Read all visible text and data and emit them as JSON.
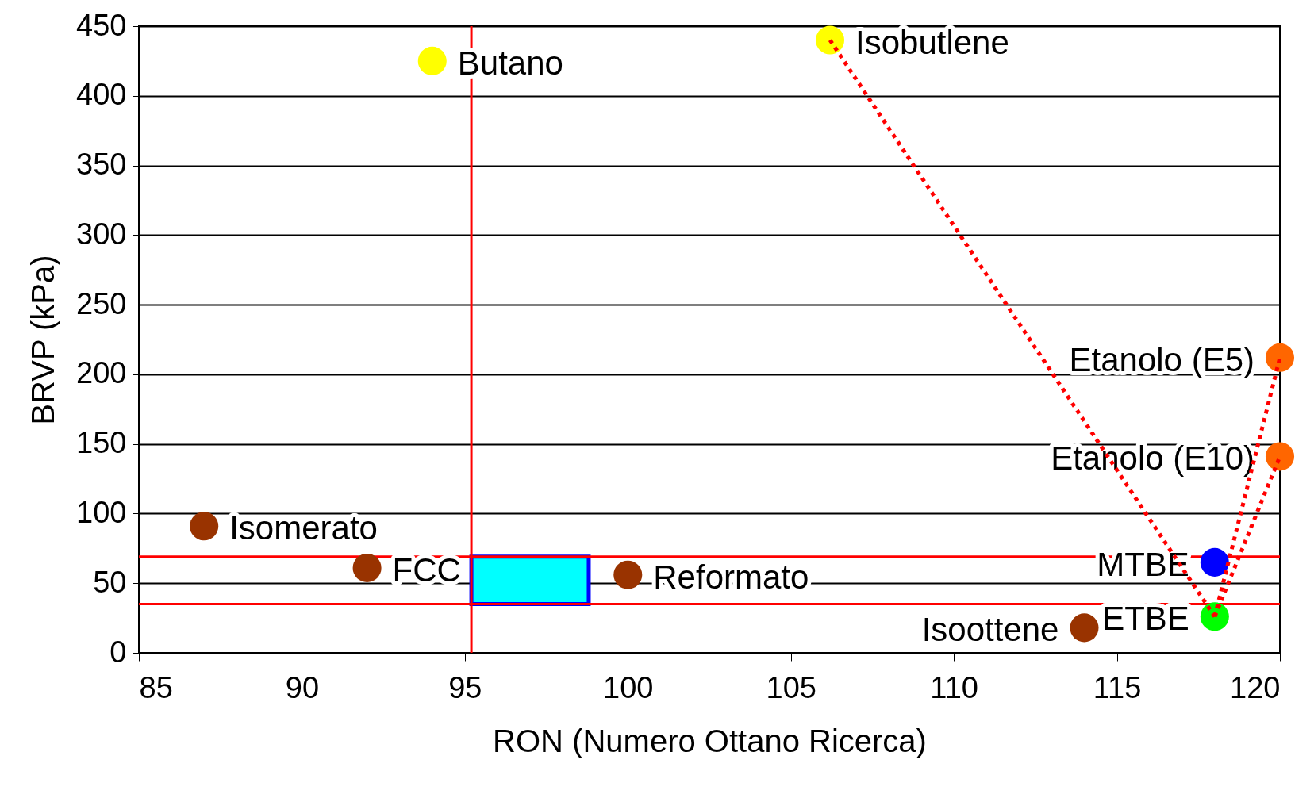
{
  "chart_data": {
    "type": "scatter",
    "xlabel": "RON (Numero Ottano Ricerca)",
    "ylabel": "BRVP (kPa)",
    "xlim": [
      85,
      120
    ],
    "xticks": [
      85,
      90,
      95,
      100,
      105,
      110,
      115,
      120
    ],
    "ylim": [
      0,
      450
    ],
    "yticks": [
      0,
      50,
      100,
      150,
      200,
      250,
      300,
      350,
      400,
      450
    ],
    "grid": "y",
    "marker": "circle",
    "series": [
      {
        "name": "Isomerato",
        "color": "#993300",
        "x": [
          87
        ],
        "values": [
          91
        ]
      },
      {
        "name": "FCC",
        "color": "#993300",
        "x": [
          92
        ],
        "values": [
          61
        ]
      },
      {
        "name": "Butano",
        "color": "#ffff00",
        "x": [
          94
        ],
        "values": [
          425
        ]
      },
      {
        "name": "Reformato",
        "color": "#993300",
        "x": [
          100
        ],
        "values": [
          56
        ]
      },
      {
        "name": "Isobutlene",
        "color": "#ffff00",
        "x": [
          106.2
        ],
        "values": [
          440
        ]
      },
      {
        "name": "Etanolo (E5)",
        "color": "#ff6600",
        "x": [
          120
        ],
        "values": [
          212
        ]
      },
      {
        "name": "Etanolo (E10)",
        "color": "#ff6600",
        "x": [
          120
        ],
        "values": [
          141
        ]
      },
      {
        "name": "MTBE",
        "color": "#0000ff",
        "x": [
          118
        ],
        "values": [
          65
        ]
      },
      {
        "name": "ETBE",
        "color": "#00ff00",
        "x": [
          118
        ],
        "values": [
          26
        ]
      },
      {
        "name": "Isoottene",
        "color": "#993300",
        "x": [
          114
        ],
        "values": [
          18
        ]
      },
      {
        "type": "line",
        "color": "#ff0000",
        "line_style": "dotted",
        "marker": "none",
        "x": [
          106.2,
          118
        ],
        "values": [
          440,
          26
        ]
      },
      {
        "type": "line",
        "color": "#ff0000",
        "line_style": "dotted",
        "marker": "none",
        "x": [
          120,
          118
        ],
        "values": [
          212,
          26
        ]
      },
      {
        "type": "line",
        "color": "#ff0000",
        "line_style": "dotted",
        "marker": "none",
        "x": [
          120,
          118
        ],
        "values": [
          141,
          26
        ]
      }
    ],
    "ref_lines": [
      {
        "axis": "x",
        "value": 95.2,
        "color": "#ff0000"
      },
      {
        "axis": "y",
        "value": 69,
        "color": "#ff0000"
      },
      {
        "axis": "y",
        "value": 35,
        "color": "#ff0000"
      }
    ],
    "bands": [
      {
        "axis": "x",
        "from": 95.2,
        "to": 98.8,
        "color": "#00ffff"
      }
    ]
  }
}
